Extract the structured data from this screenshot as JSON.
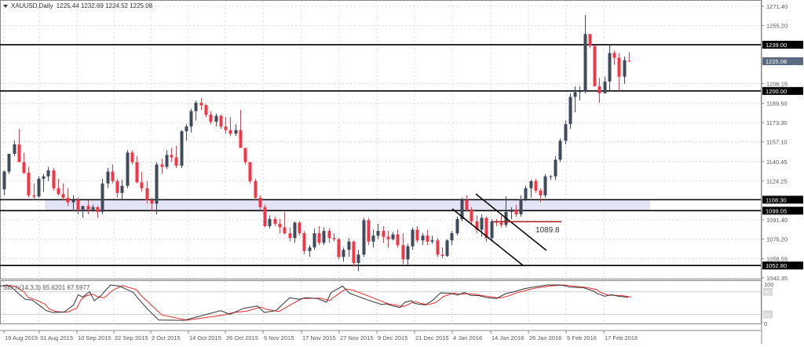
{
  "header": {
    "symbol": "XAUUSD,Daily",
    "ohlc": "1225.44 1232.69 1224.52 1225.08"
  },
  "indicator": {
    "label": "Stoch(14,3,3) 65.6201 67.5977",
    "levels": [
      "100",
      "80",
      "20",
      "0"
    ]
  },
  "colors": {
    "bull": "#3f4b5b",
    "bear": "#f23645",
    "zone": "#e4e4f7",
    "support_line": "#000000",
    "stoch_main": "#333333",
    "stoch_signal": "#ee2a2a",
    "annotation_line": "#a01818",
    "grid": "#d8d8d8"
  },
  "price_axis": {
    "ticks": [
      "1271.40",
      "1255.20",
      "1206.15",
      "1189.50",
      "1173.30",
      "1157.10",
      "1140.45",
      "1124.25",
      "1091.40",
      "1075.20",
      "1058.55",
      "1042.35"
    ],
    "current_price": "1225.08",
    "level_labels": [
      "1239.00",
      "1200.00",
      "1108.30",
      "1099.05",
      "1052.80"
    ]
  },
  "time_axis": {
    "labels": [
      "19 Aug 2015",
      "31 Aug 2015",
      "10 Sep 2015",
      "22 Sep 2015",
      "2 Oct 2015",
      "14 Oct 2015",
      "26 Oct 2015",
      "5 Nov 2015",
      "17 Nov 2015",
      "27 Nov 2015",
      "9 Dec 2015",
      "21 Dec 2015",
      "4 Jan 2016",
      "14 Jan 2016",
      "26 Jan 2016",
      "5 Feb 2016",
      "17 Feb 2016"
    ]
  },
  "annotations": {
    "target_label": "1089.8"
  },
  "chart_data": {
    "type": "candlestick",
    "title": "XAUUSD,Daily",
    "xlabel": "",
    "ylabel": "",
    "ylim": [
      1042.35,
      1271.4
    ],
    "grid": true,
    "horizontal_levels": [
      1239.0,
      1200.0,
      1108.3,
      1099.05,
      1052.8
    ],
    "support_zone": [
      1099.05,
      1108.3
    ],
    "annotation": {
      "label": "1089.8",
      "price": 1089.8
    },
    "x_ticks": [
      "19 Aug 2015",
      "31 Aug 2015",
      "10 Sep 2015",
      "22 Sep 2015",
      "2 Oct 2015",
      "14 Oct 2015",
      "26 Oct 2015",
      "5 Nov 2015",
      "17 Nov 2015",
      "27 Nov 2015",
      "9 Dec 2015",
      "21 Dec 2015",
      "4 Jan 2016",
      "14 Jan 2016",
      "26 Jan 2016",
      "5 Feb 2016",
      "17 Feb 2016"
    ],
    "ohlc": [
      [
        1117,
        1133,
        1112,
        1132
      ],
      [
        1132,
        1147,
        1130,
        1147
      ],
      [
        1147,
        1158,
        1145,
        1155
      ],
      [
        1155,
        1168,
        1140,
        1140
      ],
      [
        1140,
        1148,
        1130,
        1131
      ],
      [
        1131,
        1136,
        1110,
        1112
      ],
      [
        1112,
        1122,
        1108,
        1111
      ],
      [
        1111,
        1128,
        1110,
        1126
      ],
      [
        1126,
        1130,
        1115,
        1128
      ],
      [
        1128,
        1136,
        1124,
        1133
      ],
      [
        1133,
        1135,
        1116,
        1118
      ],
      [
        1118,
        1126,
        1112,
        1113
      ],
      [
        1113,
        1122,
        1108,
        1110
      ],
      [
        1110,
        1118,
        1103,
        1106
      ],
      [
        1106,
        1112,
        1100,
        1108
      ],
      [
        1108,
        1110,
        1096,
        1100
      ],
      [
        1100,
        1103,
        1093,
        1103
      ],
      [
        1103,
        1108,
        1096,
        1100
      ],
      [
        1100,
        1104,
        1098,
        1102
      ],
      [
        1102,
        1103,
        1093,
        1098
      ],
      [
        1098,
        1126,
        1096,
        1122
      ],
      [
        1122,
        1135,
        1118,
        1132
      ],
      [
        1132,
        1138,
        1122,
        1124
      ],
      [
        1124,
        1126,
        1110,
        1114
      ],
      [
        1114,
        1125,
        1108,
        1120
      ],
      [
        1120,
        1150,
        1118,
        1148
      ],
      [
        1148,
        1150,
        1138,
        1140
      ],
      [
        1140,
        1145,
        1122,
        1123
      ],
      [
        1123,
        1132,
        1115,
        1118
      ],
      [
        1118,
        1124,
        1105,
        1108
      ],
      [
        1108,
        1110,
        1098,
        1105
      ],
      [
        1105,
        1140,
        1096,
        1138
      ],
      [
        1138,
        1143,
        1130,
        1136
      ],
      [
        1136,
        1150,
        1134,
        1146
      ],
      [
        1146,
        1152,
        1140,
        1144
      ],
      [
        1144,
        1154,
        1135,
        1137
      ],
      [
        1137,
        1167,
        1135,
        1166
      ],
      [
        1166,
        1172,
        1158,
        1170
      ],
      [
        1170,
        1185,
        1165,
        1183
      ],
      [
        1183,
        1192,
        1175,
        1190
      ],
      [
        1190,
        1194,
        1184,
        1188
      ],
      [
        1188,
        1189,
        1178,
        1180
      ],
      [
        1180,
        1183,
        1172,
        1174
      ],
      [
        1174,
        1181,
        1170,
        1179
      ],
      [
        1179,
        1180,
        1168,
        1170
      ],
      [
        1170,
        1178,
        1164,
        1167
      ],
      [
        1167,
        1178,
        1162,
        1164
      ],
      [
        1164,
        1172,
        1162,
        1167
      ],
      [
        1167,
        1184,
        1156,
        1152
      ],
      [
        1152,
        1152,
        1138,
        1140
      ],
      [
        1140,
        1140,
        1122,
        1124
      ],
      [
        1124,
        1126,
        1108,
        1110
      ],
      [
        1110,
        1112,
        1100,
        1102
      ],
      [
        1102,
        1104,
        1085,
        1086
      ],
      [
        1086,
        1095,
        1084,
        1092
      ],
      [
        1092,
        1094,
        1086,
        1088
      ],
      [
        1088,
        1092,
        1080,
        1085
      ],
      [
        1085,
        1098,
        1079,
        1080
      ],
      [
        1080,
        1085,
        1073,
        1076
      ],
      [
        1076,
        1090,
        1072,
        1089
      ],
      [
        1089,
        1090,
        1078,
        1080
      ],
      [
        1080,
        1082,
        1062,
        1065
      ],
      [
        1065,
        1070,
        1060,
        1068
      ],
      [
        1068,
        1084,
        1066,
        1080
      ],
      [
        1080,
        1086,
        1070,
        1072
      ],
      [
        1072,
        1085,
        1070,
        1082
      ],
      [
        1082,
        1084,
        1072,
        1076
      ],
      [
        1076,
        1080,
        1073,
        1075
      ],
      [
        1075,
        1076,
        1058,
        1060
      ],
      [
        1060,
        1068,
        1056,
        1066
      ],
      [
        1066,
        1076,
        1060,
        1073
      ],
      [
        1073,
        1074,
        1052,
        1055
      ],
      [
        1055,
        1066,
        1048,
        1062
      ],
      [
        1062,
        1093,
        1060,
        1091
      ],
      [
        1091,
        1093,
        1070,
        1073
      ],
      [
        1073,
        1083,
        1068,
        1078
      ],
      [
        1078,
        1088,
        1075,
        1082
      ],
      [
        1082,
        1086,
        1072,
        1077
      ],
      [
        1077,
        1082,
        1068,
        1075
      ],
      [
        1075,
        1081,
        1074,
        1079
      ],
      [
        1079,
        1083,
        1068,
        1070
      ],
      [
        1070,
        1080,
        1054,
        1058
      ],
      [
        1058,
        1071,
        1053,
        1069
      ],
      [
        1069,
        1085,
        1066,
        1083
      ],
      [
        1083,
        1086,
        1072,
        1074
      ],
      [
        1074,
        1080,
        1070,
        1078
      ],
      [
        1078,
        1083,
        1070,
        1073
      ],
      [
        1073,
        1078,
        1071,
        1074
      ],
      [
        1074,
        1076,
        1060,
        1062
      ],
      [
        1062,
        1068,
        1059,
        1061
      ],
      [
        1061,
        1075,
        1060,
        1074
      ],
      [
        1074,
        1082,
        1070,
        1080
      ],
      [
        1080,
        1094,
        1078,
        1092
      ],
      [
        1092,
        1110,
        1090,
        1108
      ],
      [
        1108,
        1112,
        1098,
        1100
      ],
      [
        1100,
        1102,
        1088,
        1090
      ],
      [
        1090,
        1095,
        1080,
        1083
      ],
      [
        1083,
        1096,
        1077,
        1093
      ],
      [
        1093,
        1094,
        1073,
        1076
      ],
      [
        1076,
        1092,
        1074,
        1090
      ],
      [
        1090,
        1092,
        1086,
        1089
      ],
      [
        1089,
        1095,
        1085,
        1087
      ],
      [
        1087,
        1111,
        1085,
        1098
      ],
      [
        1098,
        1102,
        1092,
        1100
      ],
      [
        1100,
        1104,
        1094,
        1096
      ],
      [
        1096,
        1112,
        1094,
        1109
      ],
      [
        1109,
        1120,
        1107,
        1118
      ],
      [
        1118,
        1125,
        1110,
        1124
      ],
      [
        1124,
        1126,
        1114,
        1116
      ],
      [
        1116,
        1118,
        1106,
        1112
      ],
      [
        1112,
        1130,
        1110,
        1128
      ],
      [
        1128,
        1129,
        1125,
        1128
      ],
      [
        1128,
        1145,
        1125,
        1142
      ],
      [
        1142,
        1160,
        1140,
        1158
      ],
      [
        1158,
        1175,
        1155,
        1172
      ],
      [
        1172,
        1198,
        1168,
        1195
      ],
      [
        1195,
        1204,
        1182,
        1199
      ],
      [
        1199,
        1204,
        1192,
        1200
      ],
      [
        1200,
        1264,
        1198,
        1248
      ],
      [
        1248,
        1248,
        1236,
        1238
      ],
      [
        1238,
        1238,
        1204,
        1204
      ],
      [
        1204,
        1211,
        1190,
        1198
      ],
      [
        1198,
        1212,
        1198,
        1208
      ],
      [
        1208,
        1239,
        1199,
        1232
      ],
      [
        1232,
        1234,
        1222,
        1228
      ],
      [
        1228,
        1232,
        1200,
        1212
      ],
      [
        1212,
        1229,
        1206,
        1226
      ],
      [
        1225.44,
        1232.69,
        1224.52,
        1225.08
      ]
    ],
    "stochastic": {
      "params": "14,3,3",
      "main_last": 65.6201,
      "signal_last": 67.5977,
      "levels": [
        80,
        20
      ]
    }
  }
}
